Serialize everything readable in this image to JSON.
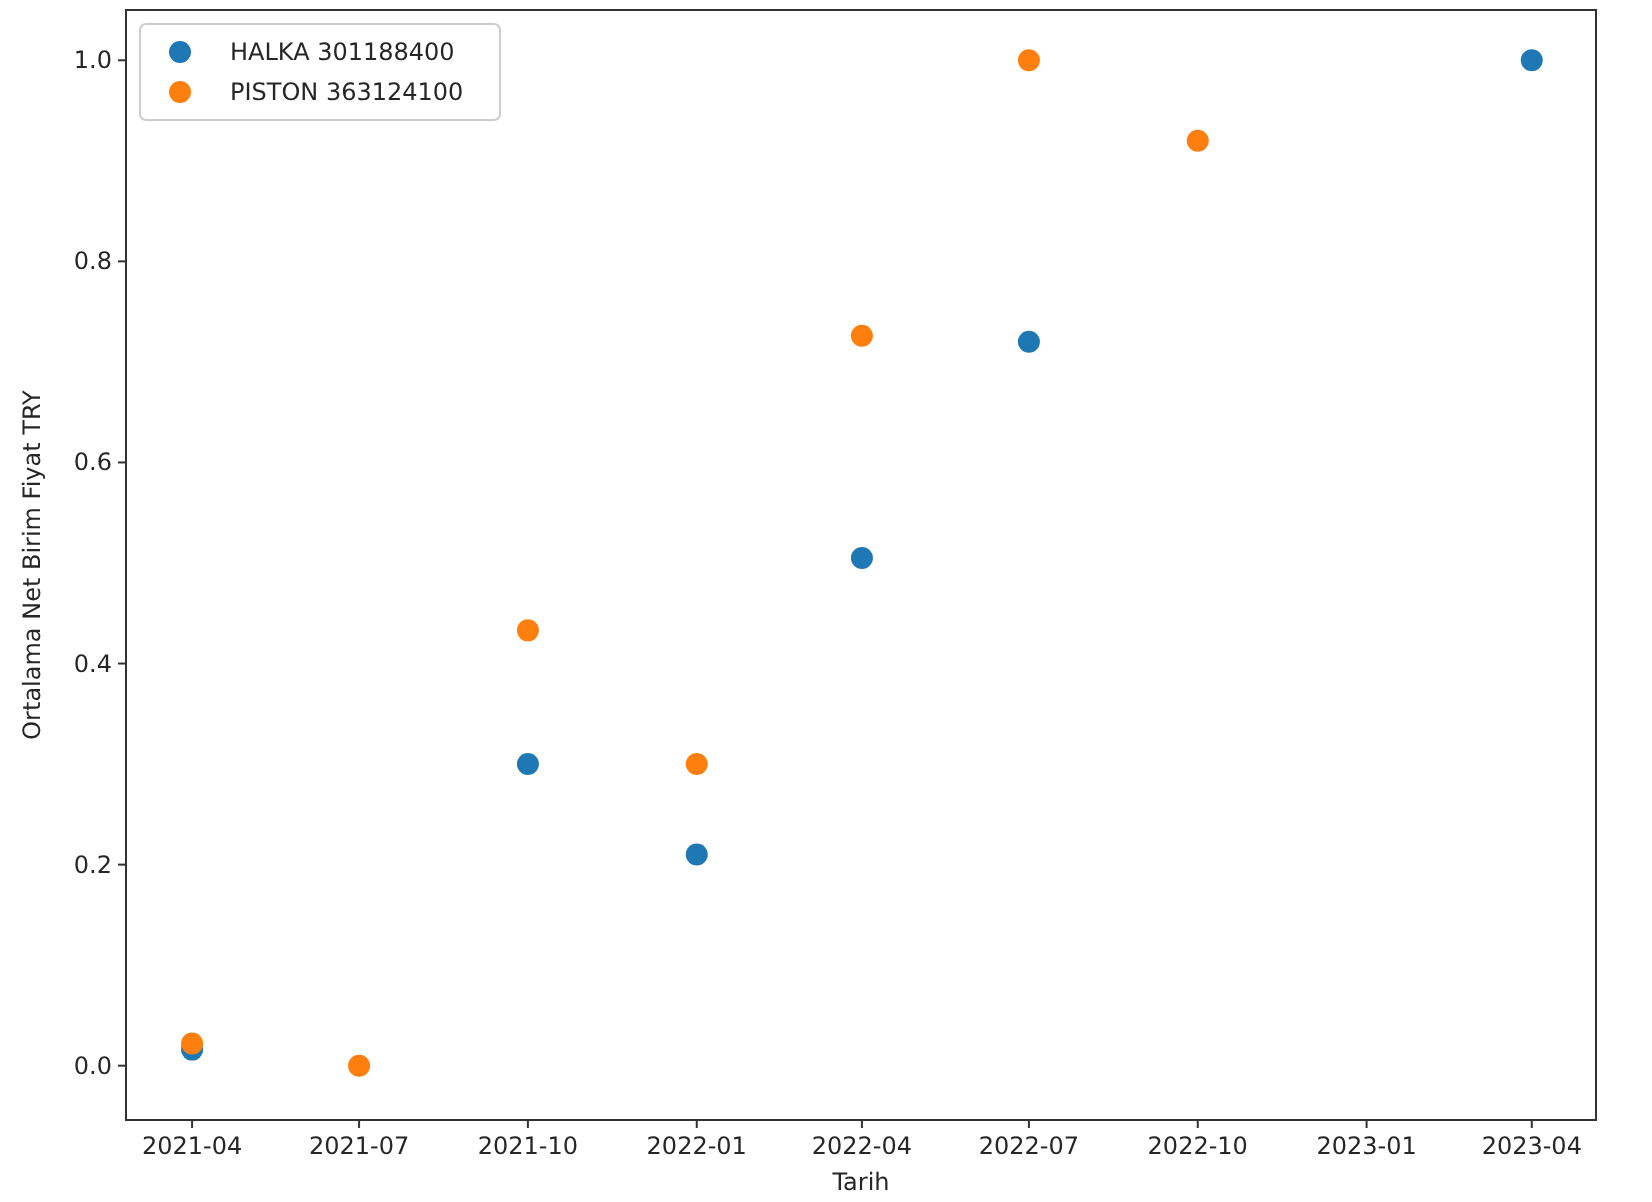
{
  "chart_data": {
    "type": "scatter",
    "xlabel": "Tarih",
    "ylabel": "Ortalama Net Birim Fiyat TRY",
    "x": [
      "2021-04",
      "2021-07",
      "2021-10",
      "2022-01",
      "2022-04",
      "2022-07",
      "2022-10",
      "2023-04"
    ],
    "series": [
      {
        "name": "HALKA 301188400",
        "color": "#1f77b4",
        "values": [
          0.016,
          null,
          0.3,
          0.21,
          0.505,
          0.72,
          null,
          1.0
        ]
      },
      {
        "name": "PISTON 363124100",
        "color": "#ff7f0e",
        "values": [
          0.022,
          0.0,
          0.433,
          0.3,
          0.726,
          1.0,
          0.92,
          null
        ]
      }
    ],
    "xlim": [
      "2021-02-24",
      "2023-05-06"
    ],
    "xticks": [
      {
        "value": "2021-04",
        "label": "2021-04"
      },
      {
        "value": "2021-07",
        "label": "2021-07"
      },
      {
        "value": "2021-10",
        "label": "2021-10"
      },
      {
        "value": "2022-01",
        "label": "2022-01"
      },
      {
        "value": "2022-04",
        "label": "2022-04"
      },
      {
        "value": "2022-07",
        "label": "2022-07"
      },
      {
        "value": "2022-10",
        "label": "2022-10"
      },
      {
        "value": "2023-01",
        "label": "2023-01"
      },
      {
        "value": "2023-04",
        "label": "2023-04"
      }
    ],
    "ylim": [
      -0.054,
      1.05
    ],
    "yticks": [
      {
        "value": 0,
        "label": "0.0"
      },
      {
        "value": 0.2,
        "label": "0.2"
      },
      {
        "value": 0.4,
        "label": "0.4"
      },
      {
        "value": 0.6,
        "label": "0.6"
      },
      {
        "value": 0.8,
        "label": "0.8"
      },
      {
        "value": 1,
        "label": "1.0"
      }
    ],
    "grid": false,
    "legend": "top left",
    "marker": "circle"
  }
}
